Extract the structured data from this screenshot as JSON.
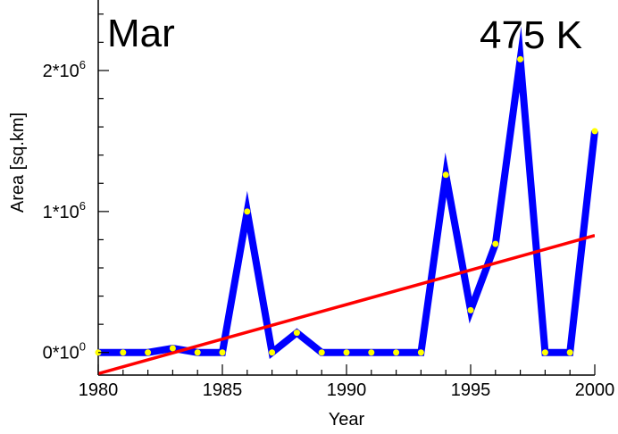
{
  "chart_data": {
    "type": "line",
    "panel_label": "Mar",
    "annotation": "475 K",
    "xlabel": "Year",
    "ylabel": "Area [sq.km]",
    "xlim": [
      1980,
      2000
    ],
    "ylim": [
      -160000,
      2500000
    ],
    "x_ticks": [
      {
        "value": 1980,
        "label": "1980"
      },
      {
        "value": 1985,
        "label": "1985"
      },
      {
        "value": 1990,
        "label": "1990"
      },
      {
        "value": 1995,
        "label": "1995"
      },
      {
        "value": 2000,
        "label": "2000"
      }
    ],
    "y_ticks": [
      {
        "value": 0,
        "base": "0*10",
        "exp": "0"
      },
      {
        "value": 1000000,
        "base": "1*10",
        "exp": "6"
      },
      {
        "value": 2000000,
        "base": "2*10",
        "exp": "6"
      }
    ],
    "grid": false,
    "series": [
      {
        "role": "data",
        "color": "#0000ff",
        "marker_color": "#ffff00",
        "x": [
          1980,
          1981,
          1982,
          1983,
          1984,
          1985,
          1986,
          1987,
          1988,
          1989,
          1990,
          1991,
          1992,
          1993,
          1994,
          1995,
          1996,
          1997,
          1998,
          1999,
          2000
        ],
        "y": [
          0,
          0,
          0,
          30000,
          0,
          0,
          1000000,
          0,
          140000,
          0,
          0,
          0,
          0,
          0,
          1260000,
          300000,
          770000,
          2080000,
          0,
          0,
          1570000
        ]
      },
      {
        "role": "trend",
        "color": "#ff0000",
        "x": [
          1980,
          2000
        ],
        "y": [
          -150000,
          830000
        ]
      }
    ]
  }
}
